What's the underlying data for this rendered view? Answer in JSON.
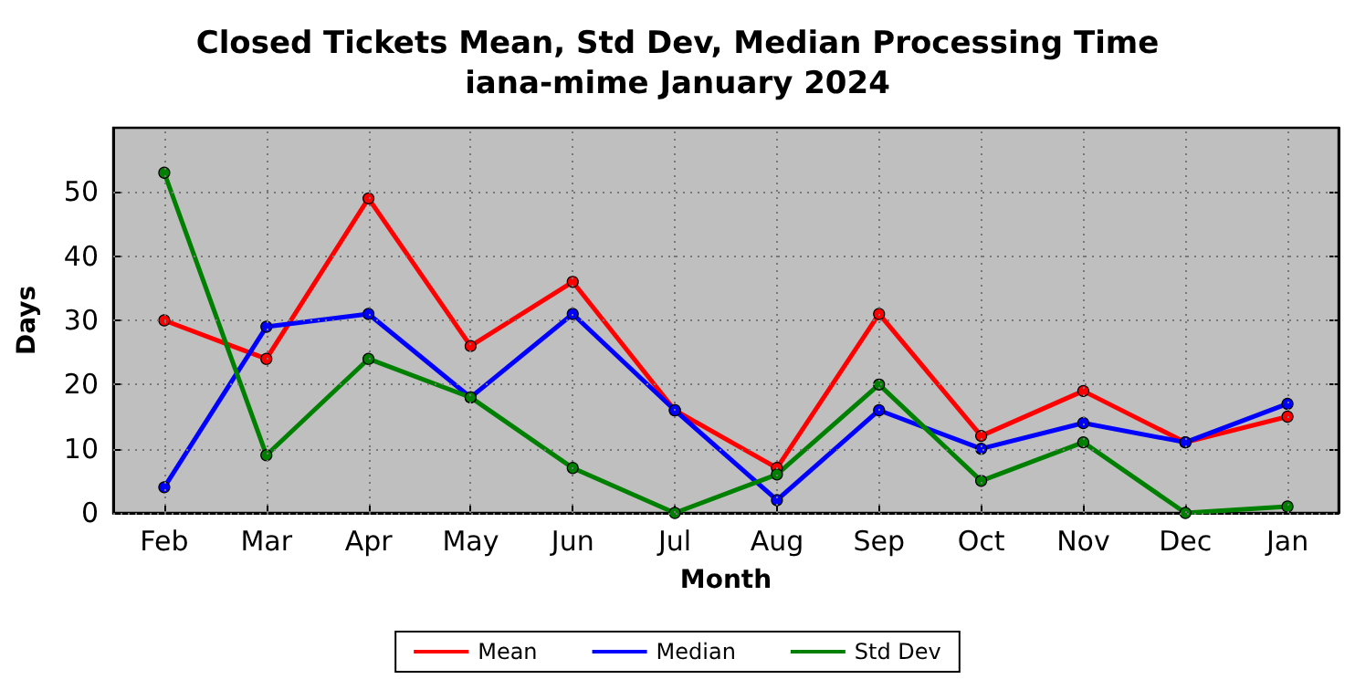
{
  "chart_data": {
    "type": "line",
    "title": "Closed Tickets Mean, Std Dev, Median Processing Time",
    "subtitle": "iana-mime January 2024",
    "xlabel": "Month",
    "ylabel": "Days",
    "categories": [
      "Feb",
      "Mar",
      "Apr",
      "May",
      "Jun",
      "Jul",
      "Aug",
      "Sep",
      "Oct",
      "Nov",
      "Dec",
      "Jan"
    ],
    "series": [
      {
        "name": "Mean",
        "color": "#ff0000",
        "values": [
          30,
          24,
          49,
          26,
          36,
          16,
          7,
          31,
          12,
          19,
          11,
          15
        ]
      },
      {
        "name": "Median",
        "color": "#0000ff",
        "values": [
          4,
          29,
          31,
          18,
          31,
          16,
          2,
          16,
          10,
          14,
          11,
          17
        ]
      },
      {
        "name": "Std Dev",
        "color": "#008000",
        "values": [
          53,
          9,
          24,
          18,
          7,
          0,
          6,
          20,
          5,
          11,
          0,
          1
        ]
      }
    ],
    "ylim": [
      0,
      60
    ],
    "yticks": [
      0,
      10,
      20,
      30,
      40,
      50
    ],
    "grid": true,
    "legend": "bottom",
    "marker": "circle",
    "line_style": "solid"
  }
}
